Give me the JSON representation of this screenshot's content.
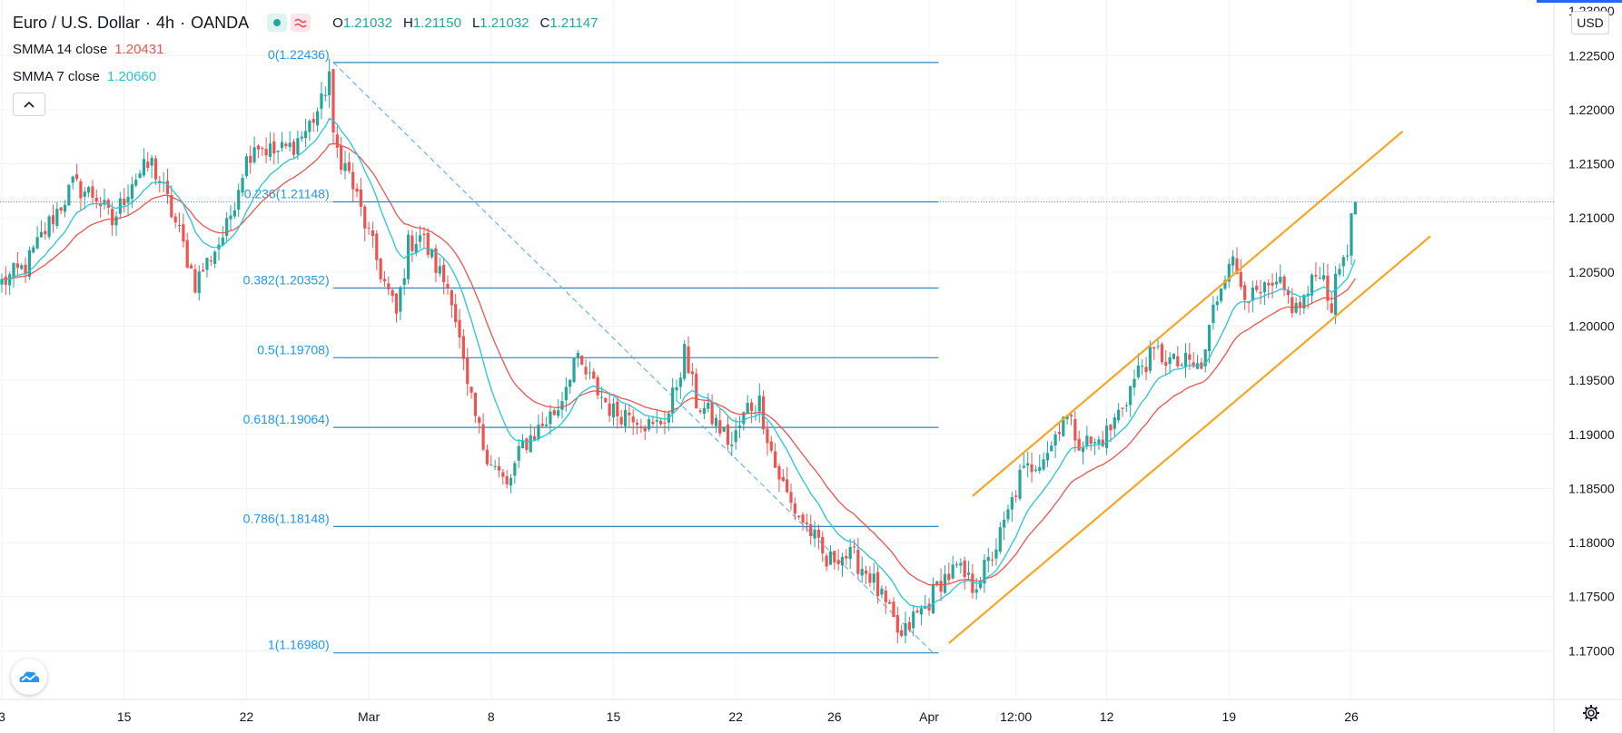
{
  "header": {
    "symbol": "Euro / U.S. Dollar",
    "interval": "4h",
    "source": "OANDA",
    "separator": "·",
    "open_label": "O",
    "open": "1.21032",
    "high_label": "H",
    "high": "1.21150",
    "low_label": "L",
    "low": "1.21032",
    "close_label": "C",
    "close": "1.21147"
  },
  "indicators": [
    {
      "name": "SMMA 14 close",
      "value": "1.20431",
      "color": "#ef5350"
    },
    {
      "name": "SMMA 7 close",
      "value": "1.20660",
      "color": "#26c6da"
    }
  ],
  "currency_button": "USD",
  "colors": {
    "up": "#26a69a",
    "down": "#ef5350",
    "fib": "#2196f3",
    "fib_label": "#2196f3",
    "channel": "#f5a623",
    "grid": "#f0f3fa"
  },
  "chart_data": {
    "type": "candlestick",
    "title": "Euro / U.S. Dollar, 4h, OANDA",
    "ylim": [
      1.1655,
      1.2298
    ],
    "y_ticks": [
      "1.17000",
      "1.17500",
      "1.18000",
      "1.18500",
      "1.19000",
      "1.19500",
      "1.20000",
      "1.20500",
      "1.21000",
      "1.21500",
      "1.22000",
      "1.22500"
    ],
    "y_tick_values": [
      1.17,
      1.175,
      1.18,
      1.185,
      1.19,
      1.195,
      1.2,
      1.205,
      1.21,
      1.215,
      1.22,
      1.225
    ],
    "y_top_partial": "1.23000",
    "x_tick_labels": [
      "3",
      "15",
      "22",
      "Mar",
      "8",
      "15",
      "22",
      "26",
      "Apr",
      "12:00",
      "12",
      "19",
      "26"
    ],
    "x_tick_index": [
      0,
      31,
      62,
      93,
      124,
      155,
      186,
      211,
      235,
      257,
      280,
      311,
      342
    ],
    "n_candles": 344,
    "closes_anchor": [
      [
        0,
        1.204
      ],
      [
        6,
        1.2055
      ],
      [
        12,
        1.2095
      ],
      [
        18,
        1.213
      ],
      [
        24,
        1.212
      ],
      [
        28,
        1.2095
      ],
      [
        33,
        1.2135
      ],
      [
        38,
        1.215
      ],
      [
        41,
        1.2125
      ],
      [
        45,
        1.2085
      ],
      [
        49,
        1.204
      ],
      [
        53,
        1.2065
      ],
      [
        57,
        1.209
      ],
      [
        61,
        1.2145
      ],
      [
        64,
        1.217
      ],
      [
        69,
        1.216
      ],
      [
        73,
        1.2165
      ],
      [
        77,
        1.218
      ],
      [
        81,
        1.2205
      ],
      [
        83,
        1.2235
      ],
      [
        84,
        1.217
      ],
      [
        88,
        1.214
      ],
      [
        92,
        1.2095
      ],
      [
        96,
        1.205
      ],
      [
        100,
        1.201
      ],
      [
        103,
        1.2075
      ],
      [
        106,
        1.2085
      ],
      [
        110,
        1.2055
      ],
      [
        114,
        1.203
      ],
      [
        118,
        1.194
      ],
      [
        122,
        1.189
      ],
      [
        125,
        1.187
      ],
      [
        128,
        1.185
      ],
      [
        132,
        1.189
      ],
      [
        136,
        1.1905
      ],
      [
        141,
        1.1925
      ],
      [
        145,
        1.197
      ],
      [
        150,
        1.1945
      ],
      [
        155,
        1.192
      ],
      [
        160,
        1.192
      ],
      [
        165,
        1.1905
      ],
      [
        169,
        1.192
      ],
      [
        173,
        1.1975
      ],
      [
        176,
        1.193
      ],
      [
        180,
        1.1915
      ],
      [
        185,
        1.189
      ],
      [
        189,
        1.1925
      ],
      [
        192,
        1.193
      ],
      [
        196,
        1.187
      ],
      [
        200,
        1.1835
      ],
      [
        205,
        1.181
      ],
      [
        209,
        1.178
      ],
      [
        212,
        1.179
      ],
      [
        216,
        1.1785
      ],
      [
        220,
        1.177
      ],
      [
        224,
        1.174
      ],
      [
        228,
        1.171
      ],
      [
        231,
        1.173
      ],
      [
        234,
        1.174
      ],
      [
        238,
        1.1765
      ],
      [
        242,
        1.1775
      ],
      [
        246,
        1.176
      ],
      [
        250,
        1.178
      ],
      [
        254,
        1.1815
      ],
      [
        258,
        1.186
      ],
      [
        262,
        1.1875
      ],
      [
        266,
        1.189
      ],
      [
        269,
        1.192
      ],
      [
        273,
        1.1895
      ],
      [
        277,
        1.189
      ],
      [
        281,
        1.1905
      ],
      [
        285,
        1.1935
      ],
      [
        289,
        1.1965
      ],
      [
        293,
        1.1975
      ],
      [
        297,
        1.1965
      ],
      [
        301,
        1.1965
      ],
      [
        304,
        1.196
      ],
      [
        307,
        1.2015
      ],
      [
        311,
        1.2065
      ],
      [
        314,
        1.204
      ],
      [
        317,
        1.2025
      ],
      [
        320,
        1.203
      ],
      [
        324,
        1.2035
      ],
      [
        328,
        1.2015
      ],
      [
        331,
        1.203
      ],
      [
        334,
        1.2055
      ],
      [
        337,
        1.202
      ],
      [
        339,
        1.2055
      ],
      [
        341,
        1.2075
      ],
      [
        343,
        1.21147
      ]
    ],
    "series": [
      {
        "name": "SMMA 14 close",
        "period": 14,
        "color": "#ef5350",
        "last_value": "1.20431"
      },
      {
        "name": "SMMA 7 close",
        "period": 7,
        "color": "#26c6da",
        "last_value": "1.20660"
      }
    ],
    "fibonacci": {
      "from_index": 85,
      "to_index": 236,
      "line_end_index": 236,
      "levels": [
        {
          "label": "0(1.22436)",
          "value": 1.22436
        },
        {
          "label": "0.236(1.21148)",
          "value": 1.21148
        },
        {
          "label": "0.382(1.20352)",
          "value": 1.20352
        },
        {
          "label": "0.5(1.19708)",
          "value": 1.19708
        },
        {
          "label": "0.618(1.19064)",
          "value": 1.19064
        },
        {
          "label": "0.786(1.18148)",
          "value": 1.18148
        },
        {
          "label": "1(1.16980)",
          "value": 1.1698
        }
      ]
    },
    "channel": [
      {
        "x1": 246,
        "y1": 1.1843,
        "x2": 355,
        "y2": 1.218
      },
      {
        "x1": 240,
        "y1": 1.1707,
        "x2": 362,
        "y2": 1.2083
      }
    ],
    "last_price": 1.21147
  }
}
